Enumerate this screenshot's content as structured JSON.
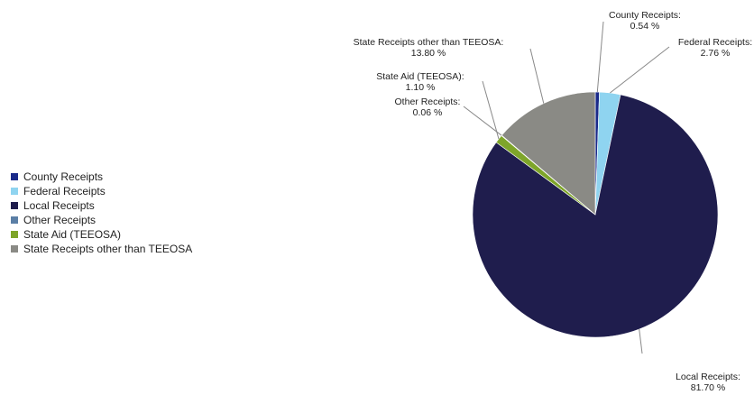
{
  "chart_data": {
    "type": "pie",
    "title": "",
    "legend_position": "left",
    "slices": [
      {
        "name": "County Receipts",
        "value": 0.54,
        "label_text": "County Receipts:",
        "value_text": "0.54 %",
        "color": "#1a2a8a"
      },
      {
        "name": "Federal Receipts",
        "value": 2.76,
        "label_text": "Federal Receipts:",
        "value_text": "2.76 %",
        "color": "#8fd4f0"
      },
      {
        "name": "Local Receipts",
        "value": 81.7,
        "label_text": "Local Receipts:",
        "value_text": "81.70 %",
        "color": "#1f1d4d"
      },
      {
        "name": "Other Receipts",
        "value": 0.06,
        "label_text": "Other Receipts:",
        "value_text": "0.06 %",
        "color": "#5b7fa6"
      },
      {
        "name": "State Aid (TEEOSA)",
        "value": 1.1,
        "label_text": "State Aid (TEEOSA):",
        "value_text": "1.10 %",
        "color": "#7ea52a"
      },
      {
        "name": "State Receipts other than TEEOSA",
        "value": 13.8,
        "label_text": "State Receipts other than TEEOSA:",
        "value_text": "13.80 %",
        "color": "#8a8a85"
      }
    ]
  }
}
